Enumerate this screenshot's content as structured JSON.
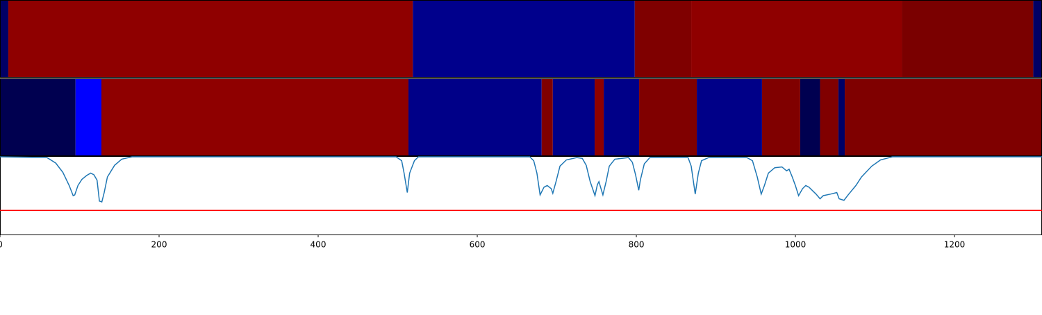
{
  "chart_data": {
    "type": "line",
    "strips": [
      {
        "edges": [
          0,
          10.5,
          519,
          798,
          869,
          1134,
          1299,
          1310
        ],
        "colors": [
          "#000066",
          "#8f0000",
          "#00008c",
          "#7f0000",
          "#8f0000",
          "#7a0000",
          "#000066"
        ]
      },
      {
        "edges": [
          0,
          95,
          127.5,
          513.5,
          681,
          695,
          747.6,
          759,
          803.5,
          876,
          958,
          1006,
          1031,
          1054,
          1062,
          1310
        ],
        "colors": [
          "#000050",
          "#0000ff",
          "#8f0000",
          "#000088",
          "#800000",
          "#000088",
          "#8f0000",
          "#000088",
          "#800000",
          "#000088",
          "#800000",
          "#000050",
          "#800000",
          "#000066",
          "#7f0000"
        ]
      }
    ],
    "x": [
      0,
      59,
      70,
      79,
      87,
      92,
      94,
      98,
      103,
      109,
      114,
      118,
      122,
      125,
      128,
      131,
      135,
      144,
      153,
      166,
      498,
      505,
      508,
      512,
      515,
      521,
      526,
      666,
      671,
      675,
      679,
      684,
      688,
      693,
      695,
      699,
      704,
      712,
      725,
      732,
      737,
      742,
      748,
      751,
      753,
      755,
      758,
      762,
      766,
      773,
      790,
      795,
      799,
      803,
      805,
      810,
      817,
      865,
      869,
      874,
      878,
      882,
      891,
      939,
      946,
      952,
      957,
      961,
      966,
      974,
      983,
      989,
      992,
      996,
      1000,
      1004,
      1009,
      1013,
      1017,
      1022,
      1026,
      1031,
      1035,
      1044,
      1052,
      1055,
      1061,
      1067,
      1076,
      1083,
      1096,
      1107,
      1122,
      1310
    ],
    "values": [
      1.0,
      0.99,
      0.92,
      0.8,
      0.63,
      0.5,
      0.51,
      0.63,
      0.71,
      0.76,
      0.79,
      0.77,
      0.7,
      0.43,
      0.42,
      0.54,
      0.74,
      0.89,
      0.97,
      1.0,
      1.0,
      0.95,
      0.79,
      0.54,
      0.79,
      0.95,
      1.0,
      1.0,
      0.95,
      0.79,
      0.51,
      0.61,
      0.63,
      0.59,
      0.53,
      0.68,
      0.88,
      0.96,
      0.99,
      0.98,
      0.89,
      0.68,
      0.5,
      0.64,
      0.68,
      0.61,
      0.51,
      0.68,
      0.88,
      0.97,
      0.99,
      0.93,
      0.77,
      0.57,
      0.7,
      0.91,
      0.99,
      0.99,
      0.88,
      0.52,
      0.79,
      0.95,
      0.99,
      0.99,
      0.95,
      0.74,
      0.52,
      0.63,
      0.79,
      0.86,
      0.87,
      0.82,
      0.84,
      0.74,
      0.63,
      0.5,
      0.59,
      0.63,
      0.61,
      0.56,
      0.52,
      0.46,
      0.5,
      0.52,
      0.54,
      0.46,
      0.44,
      0.52,
      0.63,
      0.74,
      0.88,
      0.96,
      1.0,
      1.0
    ],
    "color": "#1f77b4",
    "threshold": 0.31,
    "threshold_color": "#ff0000",
    "xlim": [
      0,
      1310
    ],
    "ylim": [
      0,
      1
    ],
    "xticks": [
      0,
      200,
      400,
      600,
      800,
      1000,
      1200
    ]
  }
}
